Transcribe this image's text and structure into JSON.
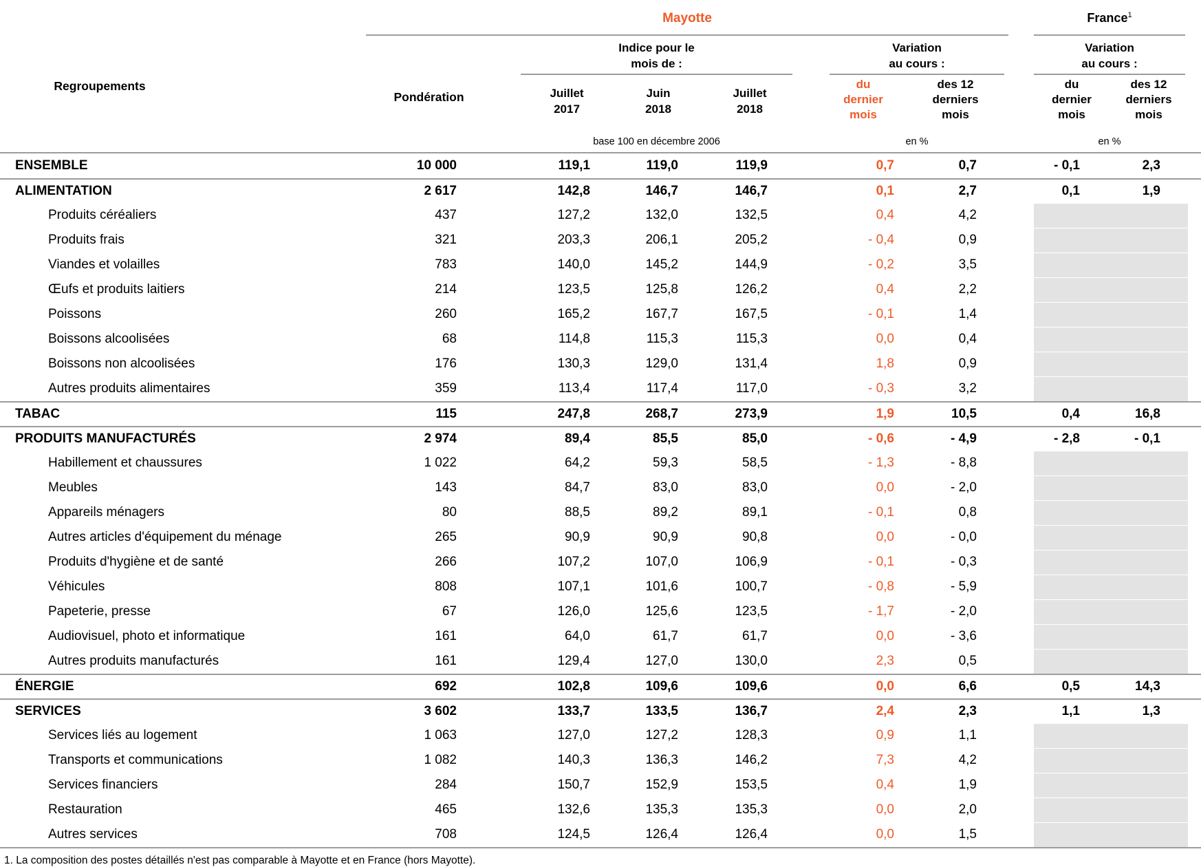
{
  "accent_color": "#ee5b28",
  "header": {
    "regroupements": "Regroupements",
    "ponderation": "Pondération",
    "mayotte_title": "Mayotte",
    "france": {
      "title": "France",
      "superscript": "1"
    },
    "indice_group": {
      "l1": "Indice pour le",
      "l2": "mois de :"
    },
    "variation_group": {
      "l1": "Variation",
      "l2": "au cours :"
    }
  },
  "columns": {
    "index_months": [
      {
        "month": "Juillet",
        "year": "2017"
      },
      {
        "month": "Juin",
        "year": "2018"
      },
      {
        "month": "Juillet",
        "year": "2018"
      }
    ],
    "variation_cols": [
      {
        "l1": "du",
        "l2": "dernier",
        "l3": "mois"
      },
      {
        "l1": "des 12",
        "l2": "derniers",
        "l3": "mois"
      }
    ]
  },
  "notes": {
    "base": "base 100 en décembre 2006",
    "percent": "en %"
  },
  "rows": [
    {
      "label": "ENSEMBLE",
      "level": "section",
      "ponderation": "10 000",
      "indices": [
        "119,1",
        "119,0",
        "119,9"
      ],
      "variation": [
        "0,7",
        "0,7"
      ],
      "france": [
        "- 0,1",
        "2,3"
      ]
    },
    {
      "label": "ALIMENTATION",
      "level": "section",
      "ponderation": "2 617",
      "indices": [
        "142,8",
        "146,7",
        "146,7"
      ],
      "variation": [
        "0,1",
        "2,7"
      ],
      "france": [
        "0,1",
        "1,9"
      ]
    },
    {
      "label": "Produits céréaliers",
      "level": "detail",
      "ponderation": "437",
      "indices": [
        "127,2",
        "132,0",
        "132,5"
      ],
      "variation": [
        "0,4",
        "4,2"
      ],
      "france": null
    },
    {
      "label": "Produits frais",
      "level": "detail",
      "ponderation": "321",
      "indices": [
        "203,3",
        "206,1",
        "205,2"
      ],
      "variation": [
        "- 0,4",
        "0,9"
      ],
      "france": null
    },
    {
      "label": "Viandes et volailles",
      "level": "detail",
      "ponderation": "783",
      "indices": [
        "140,0",
        "145,2",
        "144,9"
      ],
      "variation": [
        "- 0,2",
        "3,5"
      ],
      "france": null
    },
    {
      "label": "Œufs et produits laitiers",
      "level": "detail",
      "ponderation": "214",
      "indices": [
        "123,5",
        "125,8",
        "126,2"
      ],
      "variation": [
        "0,4",
        "2,2"
      ],
      "france": null
    },
    {
      "label": "Poissons",
      "level": "detail",
      "ponderation": "260",
      "indices": [
        "165,2",
        "167,7",
        "167,5"
      ],
      "variation": [
        "- 0,1",
        "1,4"
      ],
      "france": null
    },
    {
      "label": "Boissons alcoolisées",
      "level": "detail",
      "ponderation": "68",
      "indices": [
        "114,8",
        "115,3",
        "115,3"
      ],
      "variation": [
        "0,0",
        "0,4"
      ],
      "france": null
    },
    {
      "label": "Boissons non alcoolisées",
      "level": "detail",
      "ponderation": "176",
      "indices": [
        "130,3",
        "129,0",
        "131,4"
      ],
      "variation": [
        "1,8",
        "0,9"
      ],
      "france": null
    },
    {
      "label": "Autres produits alimentaires",
      "level": "detail",
      "ponderation": "359",
      "indices": [
        "113,4",
        "117,4",
        "117,0"
      ],
      "variation": [
        "- 0,3",
        "3,2"
      ],
      "france": null
    },
    {
      "label": "TABAC",
      "level": "section",
      "ponderation": "115",
      "indices": [
        "247,8",
        "268,7",
        "273,9"
      ],
      "variation": [
        "1,9",
        "10,5"
      ],
      "france": [
        "0,4",
        "16,8"
      ]
    },
    {
      "label": "PRODUITS MANUFACTURÉS",
      "level": "section",
      "ponderation": "2 974",
      "indices": [
        "89,4",
        "85,5",
        "85,0"
      ],
      "variation": [
        "- 0,6",
        "- 4,9"
      ],
      "france": [
        "- 2,8",
        "- 0,1"
      ]
    },
    {
      "label": "Habillement et chaussures",
      "level": "detail",
      "ponderation": "1 022",
      "indices": [
        "64,2",
        "59,3",
        "58,5"
      ],
      "variation": [
        "- 1,3",
        "- 8,8"
      ],
      "france": null
    },
    {
      "label": "Meubles",
      "level": "detail",
      "ponderation": "143",
      "indices": [
        "84,7",
        "83,0",
        "83,0"
      ],
      "variation": [
        "0,0",
        "- 2,0"
      ],
      "france": null
    },
    {
      "label": "Appareils ménagers",
      "level": "detail",
      "ponderation": "80",
      "indices": [
        "88,5",
        "89,2",
        "89,1"
      ],
      "variation": [
        "- 0,1",
        "0,8"
      ],
      "france": null
    },
    {
      "label": "Autres articles d'équipement du ménage",
      "level": "detail",
      "ponderation": "265",
      "indices": [
        "90,9",
        "90,9",
        "90,8"
      ],
      "variation": [
        "0,0",
        "- 0,0"
      ],
      "france": null
    },
    {
      "label": "Produits d'hygiène et de santé",
      "level": "detail",
      "ponderation": "266",
      "indices": [
        "107,2",
        "107,0",
        "106,9"
      ],
      "variation": [
        "- 0,1",
        "- 0,3"
      ],
      "france": null
    },
    {
      "label": "Véhicules",
      "level": "detail",
      "ponderation": "808",
      "indices": [
        "107,1",
        "101,6",
        "100,7"
      ],
      "variation": [
        "- 0,8",
        "- 5,9"
      ],
      "france": null
    },
    {
      "label": "Papeterie, presse",
      "level": "detail",
      "ponderation": "67",
      "indices": [
        "126,0",
        "125,6",
        "123,5"
      ],
      "variation": [
        "- 1,7",
        "- 2,0"
      ],
      "france": null
    },
    {
      "label": "Audiovisuel, photo et informatique",
      "level": "detail",
      "ponderation": "161",
      "indices": [
        "64,0",
        "61,7",
        "61,7"
      ],
      "variation": [
        "0,0",
        "- 3,6"
      ],
      "france": null
    },
    {
      "label": "Autres produits manufacturés",
      "level": "detail",
      "ponderation": "161",
      "indices": [
        "129,4",
        "127,0",
        "130,0"
      ],
      "variation": [
        "2,3",
        "0,5"
      ],
      "france": null
    },
    {
      "label": "ÉNERGIE",
      "level": "section",
      "ponderation": "692",
      "indices": [
        "102,8",
        "109,6",
        "109,6"
      ],
      "variation": [
        "0,0",
        "6,6"
      ],
      "france": [
        "0,5",
        "14,3"
      ]
    },
    {
      "label": "SERVICES",
      "level": "section",
      "ponderation": "3 602",
      "indices": [
        "133,7",
        "133,5",
        "136,7"
      ],
      "variation": [
        "2,4",
        "2,3"
      ],
      "france": [
        "1,1",
        "1,3"
      ]
    },
    {
      "label": "Services liés au logement",
      "level": "detail",
      "ponderation": "1 063",
      "indices": [
        "127,0",
        "127,2",
        "128,3"
      ],
      "variation": [
        "0,9",
        "1,1"
      ],
      "france": null
    },
    {
      "label": "Transports et communications",
      "level": "detail",
      "ponderation": "1 082",
      "indices": [
        "140,3",
        "136,3",
        "146,2"
      ],
      "variation": [
        "7,3",
        "4,2"
      ],
      "france": null
    },
    {
      "label": "Services financiers",
      "level": "detail",
      "ponderation": "284",
      "indices": [
        "150,7",
        "152,9",
        "153,5"
      ],
      "variation": [
        "0,4",
        "1,9"
      ],
      "france": null
    },
    {
      "label": "Restauration",
      "level": "detail",
      "ponderation": "465",
      "indices": [
        "132,6",
        "135,3",
        "135,3"
      ],
      "variation": [
        "0,0",
        "2,0"
      ],
      "france": null
    },
    {
      "label": "Autres services",
      "level": "detail",
      "ponderation": "708",
      "indices": [
        "124,5",
        "126,4",
        "126,4"
      ],
      "variation": [
        "0,0",
        "1,5"
      ],
      "france": null
    }
  ],
  "footnote": "1. La composition des postes détaillés n'est pas comparable à Mayotte et en France (hors Mayotte)."
}
